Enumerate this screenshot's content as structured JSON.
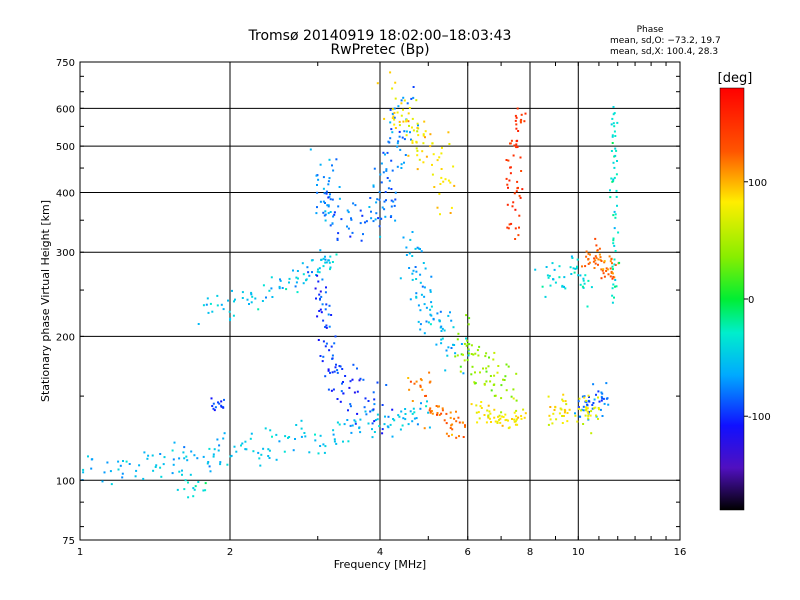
{
  "chart_data": {
    "type": "scatter",
    "title": "Tromsø 20140919 18:02:00–18:03:43",
    "subtitle": "RwPretec (Bp)",
    "xlabel": "Frequency [MHz]",
    "ylabel": "Stationary phase Virtual Height [km]",
    "xscale": "log",
    "yscale": "log",
    "xlim": [
      1,
      16
    ],
    "ylim": [
      75,
      750
    ],
    "x_ticks": [
      {
        "value": 1,
        "label": "1"
      },
      {
        "value": 2,
        "label": "2"
      },
      {
        "value": 4,
        "label": "4"
      },
      {
        "value": 6,
        "label": "6"
      },
      {
        "value": 8,
        "label": "8"
      },
      {
        "value": 10,
        "label": "10"
      },
      {
        "value": 16,
        "label": "16"
      }
    ],
    "y_ticks": [
      {
        "value": 75,
        "label": "75"
      },
      {
        "value": 100,
        "label": "100"
      },
      {
        "value": 200,
        "label": "200"
      },
      {
        "value": 300,
        "label": "300"
      },
      {
        "value": 400,
        "label": "400"
      },
      {
        "value": 500,
        "label": "500"
      },
      {
        "value": 600,
        "label": "600"
      },
      {
        "value": 750,
        "label": "750"
      }
    ],
    "x_gridlines": [
      2,
      4,
      6,
      8,
      10
    ],
    "y_gridlines": [
      100,
      200,
      300,
      400,
      500,
      600
    ],
    "grid": true,
    "phase_box": {
      "title": "Phase",
      "line1": "mean, sd,O: −73.2, 19.7",
      "line2": "mean, sd,X: 100.4, 28.3"
    },
    "colorbar": {
      "label": "[deg]",
      "range": [
        -180,
        180
      ],
      "ticks": [
        {
          "value": 100,
          "label": "100"
        },
        {
          "value": 0,
          "label": "0"
        },
        {
          "value": -100,
          "label": "-100"
        }
      ]
    },
    "colors": {
      "grid": "#000000",
      "background": "#ffffff"
    },
    "traces": [
      {
        "points": [
          [
            1.0,
            104
          ],
          [
            1.2,
            106
          ],
          [
            1.4,
            108
          ],
          [
            1.6,
            111
          ],
          [
            1.8,
            113
          ],
          [
            2.0,
            116
          ],
          [
            2.3,
            118
          ],
          [
            2.6,
            121
          ],
          [
            3.0,
            123
          ],
          [
            3.4,
            126
          ],
          [
            3.8,
            130
          ],
          [
            4.2,
            133
          ],
          [
            4.6,
            137
          ],
          [
            5.0,
            140
          ]
        ],
        "phase": -55,
        "spread": 0.035
      },
      {
        "points": [
          [
            1.75,
            225
          ],
          [
            2.0,
            232
          ],
          [
            2.3,
            245
          ],
          [
            2.6,
            258
          ],
          [
            2.9,
            270
          ],
          [
            3.1,
            280
          ],
          [
            3.2,
            290
          ]
        ],
        "phase": -50,
        "spread": 0.03
      },
      {
        "points": [
          [
            3.0,
            260
          ],
          [
            3.1,
            230
          ],
          [
            3.15,
            200
          ],
          [
            3.2,
            175
          ],
          [
            3.3,
            160
          ],
          [
            3.5,
            150
          ],
          [
            3.8,
            145
          ],
          [
            4.1,
            140
          ]
        ],
        "phase": -95,
        "spread": 0.05
      },
      {
        "points": [
          [
            3.05,
            470
          ],
          [
            3.1,
            420
          ],
          [
            3.1,
            380
          ],
          [
            3.2,
            350
          ],
          [
            3.5,
            340
          ],
          [
            3.8,
            350
          ],
          [
            4.0,
            370
          ],
          [
            4.1,
            400
          ],
          [
            4.2,
            450
          ],
          [
            4.3,
            500
          ],
          [
            4.4,
            560
          ],
          [
            4.5,
            620
          ]
        ],
        "phase": -75,
        "spread": 0.05
      },
      {
        "points": [
          [
            4.2,
            640
          ],
          [
            4.4,
            600
          ],
          [
            4.6,
            560
          ],
          [
            4.8,
            520
          ],
          [
            5.0,
            480
          ],
          [
            5.3,
            440
          ],
          [
            5.6,
            400
          ]
        ],
        "phase": 85,
        "spread": 0.05
      },
      {
        "points": [
          [
            4.6,
            310
          ],
          [
            4.7,
            280
          ],
          [
            4.8,
            250
          ],
          [
            5.0,
            230
          ],
          [
            5.2,
            210
          ],
          [
            5.5,
            195
          ],
          [
            5.8,
            180
          ]
        ],
        "phase": -60,
        "spread": 0.05
      },
      {
        "points": [
          [
            4.6,
            160
          ],
          [
            5.0,
            150
          ],
          [
            5.3,
            140
          ],
          [
            5.6,
            133
          ],
          [
            6.0,
            128
          ]
        ],
        "phase": 120,
        "spread": 0.04
      },
      {
        "points": [
          [
            6.2,
            140
          ],
          [
            6.6,
            137
          ],
          [
            7.0,
            135
          ],
          [
            7.4,
            134
          ],
          [
            7.8,
            136
          ]
        ],
        "phase": 80,
        "spread": 0.02
      },
      {
        "points": [
          [
            5.8,
            180
          ],
          [
            6.0,
            190
          ],
          [
            6.3,
            175
          ],
          [
            6.6,
            165
          ],
          [
            7.0,
            160
          ],
          [
            7.4,
            155
          ]
        ],
        "phase": 40,
        "spread": 0.06
      },
      {
        "points": [
          [
            7.6,
            600
          ],
          [
            7.5,
            520
          ],
          [
            7.4,
            450
          ],
          [
            7.4,
            380
          ],
          [
            7.3,
            330
          ]
        ],
        "phase": 150,
        "spread": 0.03
      },
      {
        "points": [
          [
            10.4,
            300
          ],
          [
            10.8,
            290
          ],
          [
            11.2,
            285
          ],
          [
            11.6,
            280
          ],
          [
            12.0,
            275
          ]
        ],
        "phase": 120,
        "spread": 0.03
      },
      {
        "points": [
          [
            11.8,
            600
          ],
          [
            11.8,
            500
          ],
          [
            11.8,
            400
          ],
          [
            11.8,
            300
          ],
          [
            11.8,
            230
          ]
        ],
        "phase": -30,
        "spread": 0.015
      },
      {
        "points": [
          [
            8.5,
            270
          ],
          [
            9.0,
            265
          ],
          [
            10.0,
            275
          ],
          [
            10.5,
            260
          ]
        ],
        "phase": -40,
        "spread": 0.04
      },
      {
        "points": [
          [
            10.0,
            140
          ],
          [
            10.5,
            142
          ],
          [
            11.0,
            145
          ],
          [
            11.4,
            147
          ]
        ],
        "phase": -80,
        "spread": 0.03
      },
      {
        "points": [
          [
            10.0,
            140
          ],
          [
            10.5,
            138
          ],
          [
            11.0,
            142
          ]
        ],
        "phase": 75,
        "spread": 0.03
      },
      {
        "points": [
          [
            1.6,
            96
          ],
          [
            1.8,
            97
          ]
        ],
        "phase": -35,
        "spread": 0.02
      },
      {
        "points": [
          [
            1.85,
            145
          ],
          [
            1.95,
            145
          ]
        ],
        "phase": -100,
        "spread": 0.02
      },
      {
        "points": [
          [
            8.8,
            140
          ],
          [
            9.2,
            140
          ],
          [
            9.5,
            141
          ]
        ],
        "phase": 85,
        "spread": 0.03
      }
    ]
  }
}
